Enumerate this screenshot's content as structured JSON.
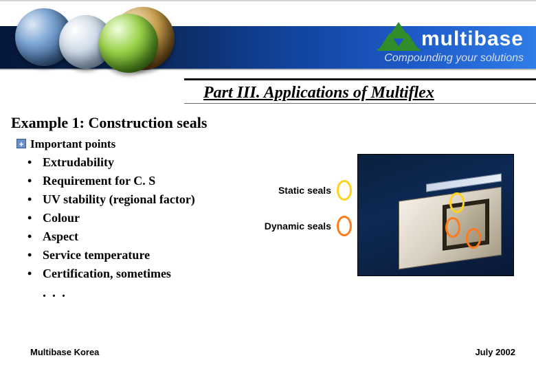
{
  "header": {
    "brand": "multibase",
    "tagline": "Compounding your solutions",
    "brand_color": "#2f8e2a",
    "band_gradient": [
      "#06183a",
      "#0b2a5e",
      "#1244a0",
      "#1e5bc8",
      "#2f7de8"
    ]
  },
  "section_title": "Part III. Applications of Multiflex",
  "example_title": "Example 1: Construction seals",
  "points_intro": "Important points",
  "points": [
    "Extrudability",
    "Requirement for C. S",
    "UV stability (regional factor)",
    "Colour",
    "Aspect",
    "Service temperature",
    "Certification, sometimes"
  ],
  "ellipsis": ". . .",
  "legend": {
    "static": {
      "label": "Static seals",
      "color": "#ffd21f"
    },
    "dynamic": {
      "label": "Dynamic seals",
      "color": "#ff7a1a"
    }
  },
  "figure": {
    "type": "infographic",
    "background_color": "#0a1f3e",
    "profile_fill": "#d7cfc0",
    "channel_fill": "#2a2418",
    "callouts": [
      {
        "label": "static",
        "stroke": "#ffd21f"
      },
      {
        "label": "dynamic",
        "stroke": "#ff7a1a"
      },
      {
        "label": "dynamic",
        "stroke": "#ff7a1a"
      }
    ]
  },
  "footer": {
    "left": "Multibase Korea",
    "right": "July  2002"
  },
  "typography": {
    "title_fontsize": 24,
    "body_fontsize": 18,
    "legend_fontsize": 14,
    "footer_fontsize": 13
  }
}
